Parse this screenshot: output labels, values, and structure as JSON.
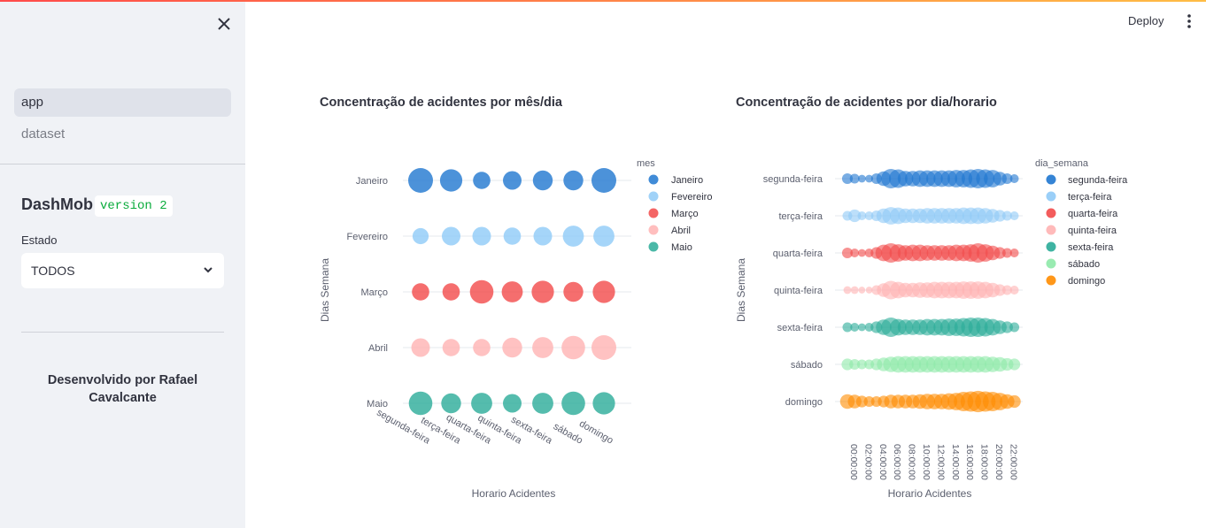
{
  "sidebar": {
    "nav_items": [
      {
        "label": "app",
        "active": true
      },
      {
        "label": "dataset",
        "active": false
      }
    ],
    "app_name": "DashMob",
    "version_badge": "version 2",
    "filter_label": "Estado",
    "filter_value": "TODOS",
    "credit": "Desenvolvido por Rafael Cavalcante"
  },
  "header": {
    "deploy_label": "Deploy"
  },
  "colors": {
    "accent_gradient_start": "#ff4b4b",
    "accent_gradient_end": "#ffbd45",
    "badge_text": "#09ab3b"
  },
  "chart_data": [
    {
      "type": "scatter",
      "title": "Concentração de acidentes por mês/dia",
      "xlabel": "Horario Acidentes",
      "ylabel": "Dias Semana",
      "legend_title": "mes",
      "legend_position": "right",
      "x_categories": [
        "segunda-feira",
        "terça-feira",
        "quarta-feira",
        "quinta-feira",
        "sexta-feira",
        "sábado",
        "domingo"
      ],
      "y_categories": [
        "Janeiro",
        "Fevereiro",
        "Março",
        "Abril",
        "Maio"
      ],
      "series": [
        {
          "name": "Janeiro",
          "color": "#1f77d0",
          "sizes": [
            1.0,
            0.9,
            0.7,
            0.75,
            0.8,
            0.8,
            1.0
          ]
        },
        {
          "name": "Fevereiro",
          "color": "#8fcaf7",
          "sizes": [
            0.65,
            0.75,
            0.75,
            0.7,
            0.75,
            0.85,
            0.85
          ]
        },
        {
          "name": "Março",
          "color": "#f24a4a",
          "sizes": [
            0.7,
            0.7,
            0.95,
            0.85,
            0.9,
            0.8,
            0.9
          ]
        },
        {
          "name": "Abril",
          "color": "#ffb3b3",
          "sizes": [
            0.75,
            0.7,
            0.7,
            0.8,
            0.85,
            0.95,
            1.0
          ]
        },
        {
          "name": "Maio",
          "color": "#2aab98",
          "sizes": [
            0.95,
            0.8,
            0.85,
            0.75,
            0.85,
            0.95,
            0.9
          ]
        }
      ]
    },
    {
      "type": "scatter",
      "title": "Concentração de acidentes por dia/horario",
      "xlabel": "Horario Acidentes",
      "ylabel": "Dias Semana",
      "legend_title": "dia_semana",
      "legend_position": "right",
      "x_tick_labels": [
        "00:00:00",
        "02:00:00",
        "04:00:00",
        "06:00:00",
        "08:00:00",
        "10:00:00",
        "12:00:00",
        "14:00:00",
        "16:00:00",
        "18:00:00",
        "20:00:00",
        "22:00:00"
      ],
      "x_hours": [
        0,
        1,
        2,
        3,
        4,
        5,
        6,
        7,
        8,
        9,
        10,
        11,
        12,
        13,
        14,
        15,
        16,
        17,
        18,
        19,
        20,
        21,
        22,
        23
      ],
      "y_categories": [
        "segunda-feira",
        "terça-feira",
        "quarta-feira",
        "quinta-feira",
        "sexta-feira",
        "sábado",
        "domingo"
      ],
      "series": [
        {
          "name": "segunda-feira",
          "color": "#1f77d0",
          "sizes": [
            0.55,
            0.5,
            0.4,
            0.4,
            0.55,
            0.75,
            1.0,
            0.95,
            0.8,
            0.8,
            0.85,
            0.85,
            0.85,
            0.85,
            0.85,
            0.9,
            0.9,
            0.95,
            1.0,
            0.95,
            0.9,
            0.7,
            0.55,
            0.45
          ]
        },
        {
          "name": "terça-feira",
          "color": "#8fcaf7",
          "sizes": [
            0.5,
            0.65,
            0.45,
            0.45,
            0.55,
            0.75,
            0.9,
            0.85,
            0.75,
            0.75,
            0.75,
            0.8,
            0.8,
            0.8,
            0.8,
            0.8,
            0.85,
            0.85,
            0.85,
            0.8,
            0.7,
            0.6,
            0.5,
            0.45
          ]
        },
        {
          "name": "quarta-feira",
          "color": "#f24a4a",
          "sizes": [
            0.55,
            0.45,
            0.4,
            0.45,
            0.6,
            0.85,
            1.0,
            0.9,
            0.8,
            0.85,
            0.85,
            0.8,
            0.8,
            0.8,
            0.8,
            0.85,
            0.85,
            0.9,
            1.0,
            0.9,
            0.75,
            0.6,
            0.5,
            0.45
          ]
        },
        {
          "name": "quinta-feira",
          "color": "#ffb3b3",
          "sizes": [
            0.4,
            0.4,
            0.35,
            0.35,
            0.5,
            0.7,
            0.95,
            0.85,
            0.75,
            0.75,
            0.8,
            0.8,
            0.85,
            0.85,
            0.85,
            0.85,
            0.9,
            0.9,
            0.9,
            0.85,
            0.75,
            0.6,
            0.5,
            0.45
          ]
        },
        {
          "name": "sexta-feira",
          "color": "#2aab98",
          "sizes": [
            0.5,
            0.45,
            0.4,
            0.45,
            0.6,
            0.8,
            1.0,
            0.85,
            0.8,
            0.8,
            0.8,
            0.85,
            0.85,
            0.85,
            0.9,
            0.9,
            0.95,
            1.0,
            1.0,
            0.95,
            0.85,
            0.7,
            0.6,
            0.5
          ]
        },
        {
          "name": "sábado",
          "color": "#8ee9a8",
          "sizes": [
            0.6,
            0.55,
            0.5,
            0.5,
            0.6,
            0.7,
            0.8,
            0.85,
            0.85,
            0.85,
            0.85,
            0.85,
            0.85,
            0.85,
            0.85,
            0.85,
            0.85,
            0.85,
            0.85,
            0.85,
            0.8,
            0.75,
            0.65,
            0.6
          ]
        },
        {
          "name": "domingo",
          "color": "#ff8c00",
          "sizes": [
            0.75,
            0.7,
            0.6,
            0.55,
            0.55,
            0.6,
            0.7,
            0.7,
            0.7,
            0.7,
            0.75,
            0.8,
            0.8,
            0.8,
            0.85,
            0.9,
            1.0,
            1.05,
            1.1,
            1.05,
            1.0,
            0.9,
            0.75,
            0.65
          ]
        }
      ]
    }
  ]
}
